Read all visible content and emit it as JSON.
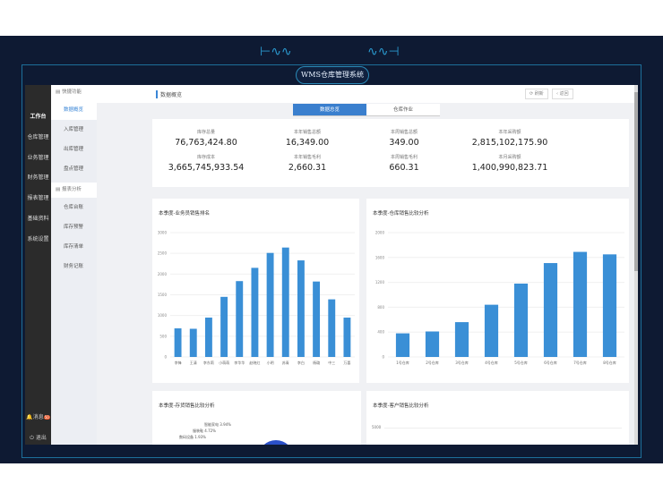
{
  "app": {
    "title": "WMS仓库管理系统"
  },
  "sidebar": {
    "items": [
      {
        "label": "工作台"
      },
      {
        "label": "仓库管理"
      },
      {
        "label": "业务管理"
      },
      {
        "label": "财务管理"
      },
      {
        "label": "报表管理"
      },
      {
        "label": "基础资料"
      },
      {
        "label": "系统设置"
      }
    ],
    "messages_label": "消息",
    "badge": "50",
    "logout_label": "退出"
  },
  "submenu": {
    "group1": "快捷功能",
    "group1_items": [
      {
        "label": "数据概览"
      },
      {
        "label": "入库管理"
      },
      {
        "label": "出库管理"
      },
      {
        "label": "盘点管理"
      }
    ],
    "group2": "报表分析",
    "group2_items": [
      {
        "label": "仓库台账"
      },
      {
        "label": "库存预警"
      },
      {
        "label": "库存清单"
      },
      {
        "label": "财务记账"
      }
    ]
  },
  "header": {
    "title": "数据概览",
    "refresh_label": "刷新",
    "back_label": "返回"
  },
  "tabs": [
    {
      "label": "数据总览"
    },
    {
      "label": "仓库作业"
    }
  ],
  "stats": [
    {
      "label": "库存总量",
      "value": "76,763,424.80"
    },
    {
      "label": "本年销售总额",
      "value": "16,349.00"
    },
    {
      "label": "本周销售总额",
      "value": "349.00"
    },
    {
      "label": "本年采购额",
      "value": "2,815,102,175.90"
    },
    {
      "label": "库存成本",
      "value": "3,665,745,933.54"
    },
    {
      "label": "本年销售毛利",
      "value": "2,660.31"
    },
    {
      "label": "本周销售毛利",
      "value": "660.31"
    },
    {
      "label": "本月采购额",
      "value": "1,400,990,823.71"
    }
  ],
  "chart_data": [
    {
      "type": "bar",
      "title": "本季度-业务员销售排名",
      "categories": [
        "李锋",
        "王清",
        "李东莉",
        "小萌萌",
        "李华华",
        "赵晓红",
        "小明",
        "苏青",
        "李白",
        "杨璐",
        "中三",
        "万喜"
      ],
      "values": [
        690,
        680,
        950,
        1450,
        1830,
        2150,
        2510,
        2640,
        2330,
        1820,
        1390,
        950
      ],
      "ylim": [
        0,
        3000
      ],
      "yticks": [
        0,
        500,
        1000,
        1500,
        2000,
        2500,
        3000
      ],
      "color": "#3a8fd6"
    },
    {
      "type": "bar",
      "title": "本季度-仓库销售比较分析",
      "categories": [
        "1号仓库",
        "2号仓库",
        "3号仓库",
        "4号仓库",
        "5号仓库",
        "6号仓库",
        "7号仓库",
        "8号仓库"
      ],
      "values": [
        380,
        410,
        560,
        840,
        1180,
        1510,
        1690,
        1650
      ],
      "ylim": [
        0,
        2000
      ],
      "yticks": [
        0,
        400,
        800,
        1200,
        1600,
        2000
      ],
      "color": "#3a8fd6"
    },
    {
      "type": "pie",
      "title": "本季度-存货销售比较分析",
      "labels": [
        "智能家电 3.94%",
        "服装鞋 4.72%",
        "数码设备 1.93%"
      ]
    },
    {
      "type": "bar",
      "title": "本季度-客户销售比较分析",
      "yticks": [
        5000
      ]
    }
  ]
}
